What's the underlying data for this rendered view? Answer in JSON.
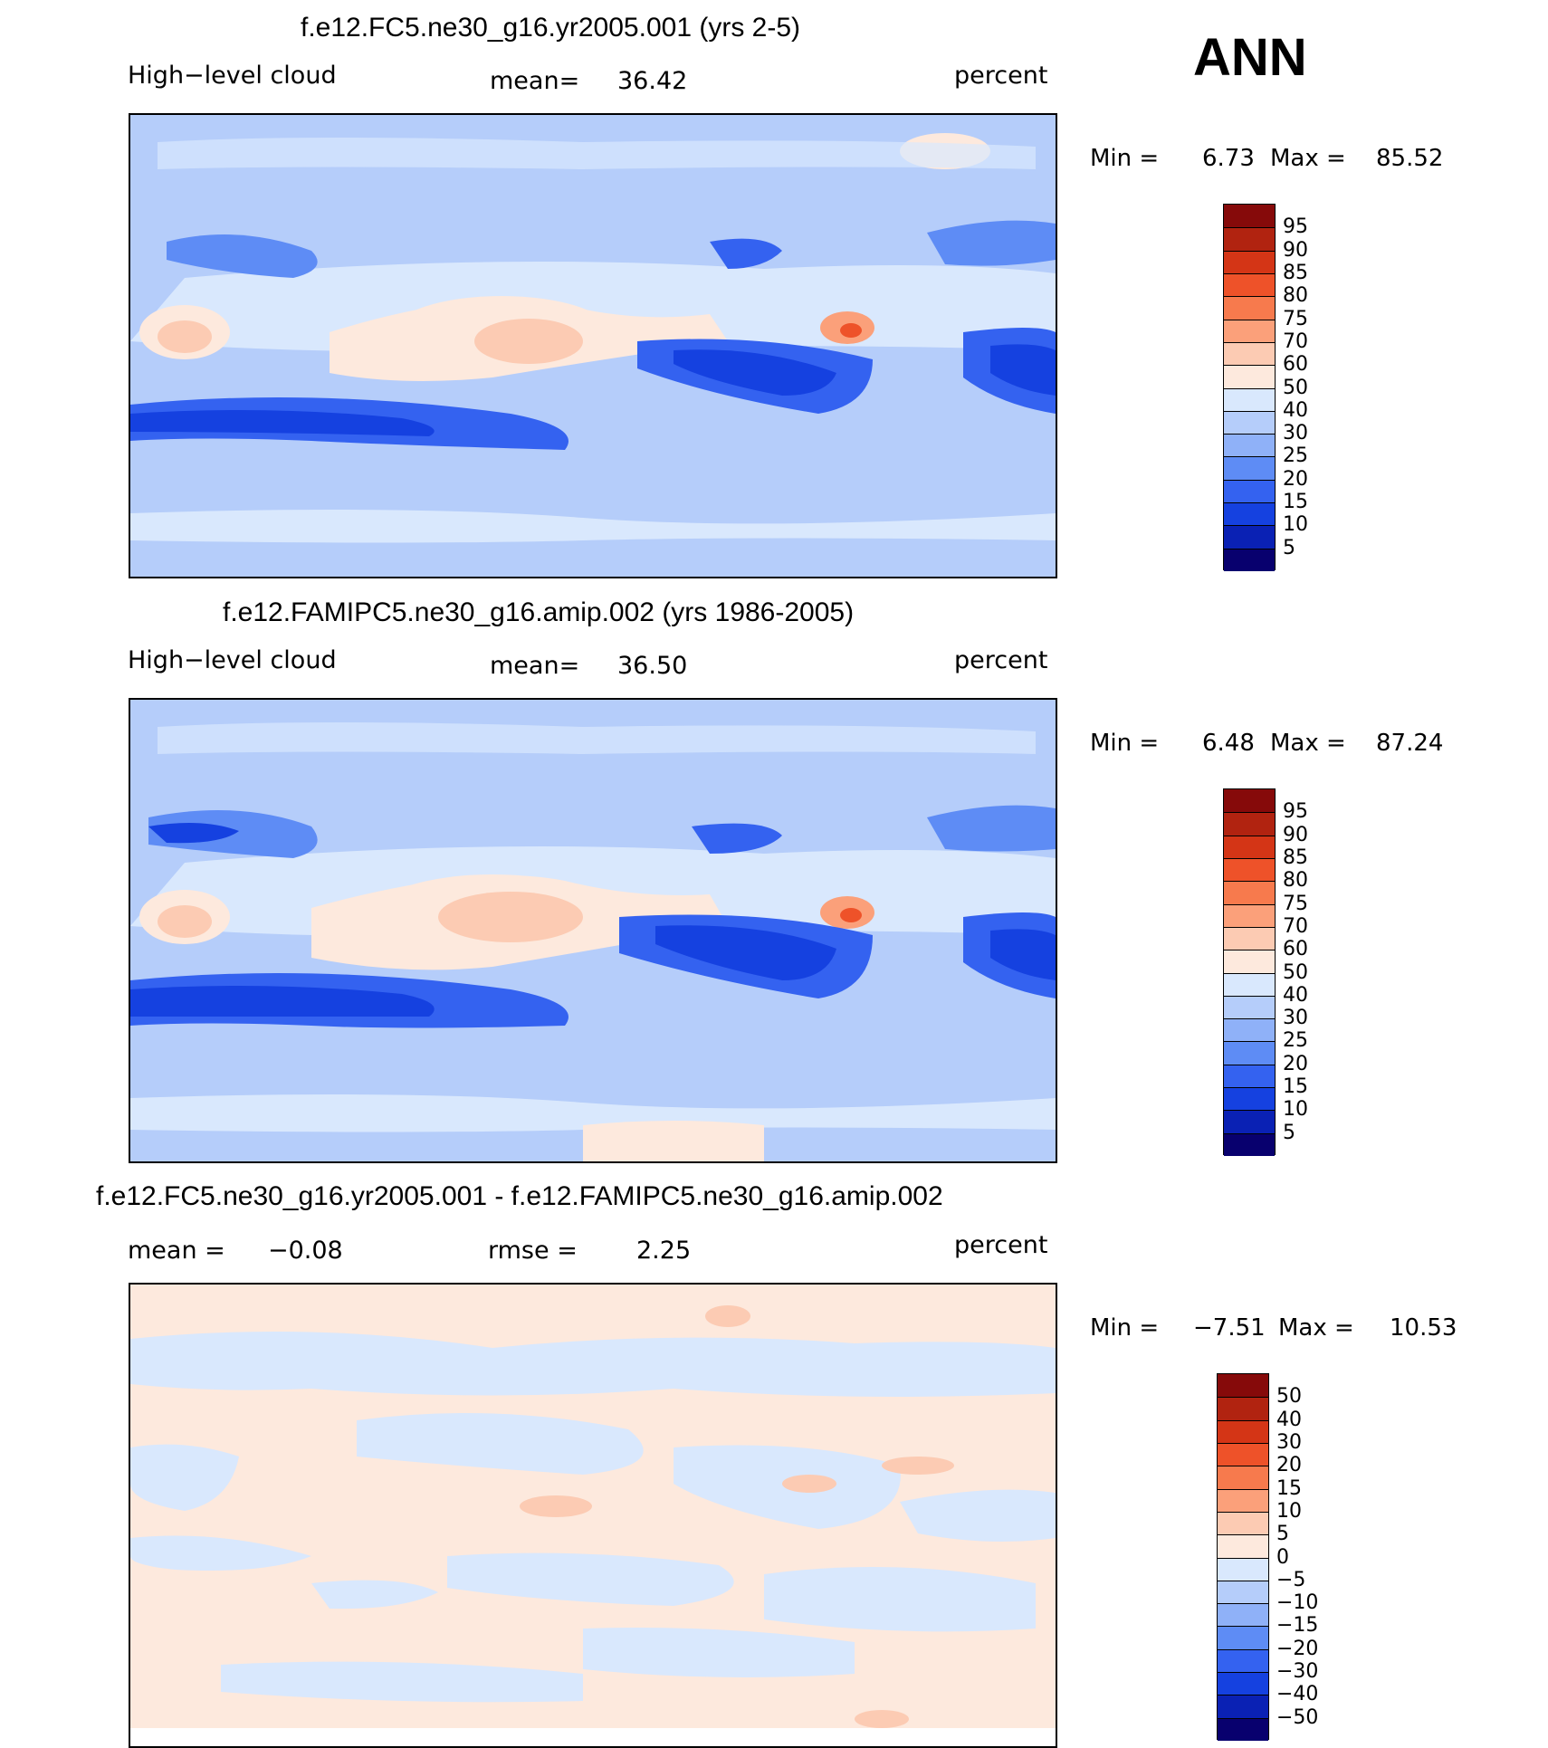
{
  "season": "ANN",
  "colors": {
    "abs": [
      "#08006e",
      "#0a21b4",
      "#1541e0",
      "#3462f0",
      "#5e8cf5",
      "#8fb1f8",
      "#b5cdfa",
      "#d9e8fd",
      "#fde9dd",
      "#fccbb3",
      "#fba07a",
      "#f77a4d",
      "#ee5229",
      "#d43516",
      "#b12310",
      "#860a0a"
    ],
    "diff": [
      "#08006e",
      "#0a21b4",
      "#1541e0",
      "#3462f0",
      "#5e8cf5",
      "#8fb1f8",
      "#b5cdfa",
      "#d9e8fd",
      "#fde9dd",
      "#fccbb3",
      "#fba07a",
      "#f77a4d",
      "#ee5229",
      "#d43516",
      "#b12310",
      "#860a0a"
    ]
  },
  "panels": [
    {
      "title": "f.e12.FC5.ne30_g16.yr2005.001 (yrs 2-5)",
      "left_label": "High−level cloud",
      "mean_label": "mean=",
      "mean_value": "36.42",
      "units": "percent",
      "min_label": "Min  =",
      "min_value": "6.73",
      "max_label": "Max  =",
      "max_value": "85.52",
      "levels": [
        "95",
        "90",
        "85",
        "80",
        "75",
        "70",
        "60",
        "50",
        "40",
        "30",
        "25",
        "20",
        "15",
        "10",
        "5"
      ]
    },
    {
      "title": "f.e12.FAMIPC5.ne30_g16.amip.002 (yrs 1986-2005)",
      "left_label": "High−level cloud",
      "mean_label": "mean=",
      "mean_value": "36.50",
      "units": "percent",
      "min_label": "Min  =",
      "min_value": "6.48",
      "max_label": "Max  =",
      "max_value": "87.24",
      "levels": [
        "95",
        "90",
        "85",
        "80",
        "75",
        "70",
        "60",
        "50",
        "40",
        "30",
        "25",
        "20",
        "15",
        "10",
        "5"
      ]
    },
    {
      "title": "f.e12.FC5.ne30_g16.yr2005.001 - f.e12.FAMIPC5.ne30_g16.amip.002",
      "left_label": "mean  =",
      "left_value": "−0.08",
      "mean_label": "rmse  =",
      "mean_value": "2.25",
      "units": "percent",
      "min_label": "Min  =",
      "min_value": "−7.51",
      "max_label": "Max  =",
      "max_value": "10.53",
      "levels": [
        "50",
        "40",
        "30",
        "20",
        "15",
        "10",
        "5",
        "0",
        "−5",
        "−10",
        "−15",
        "−20",
        "−30",
        "−40",
        "−50"
      ]
    }
  ]
}
